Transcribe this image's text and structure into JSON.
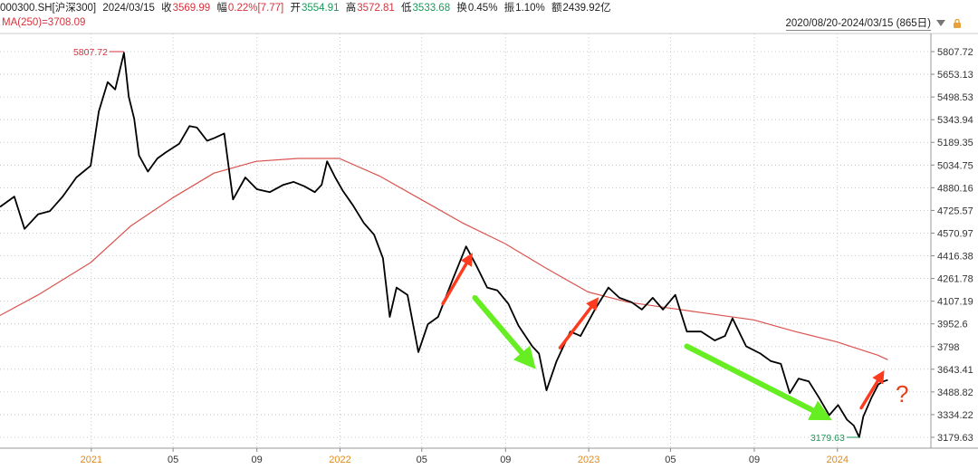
{
  "header": {
    "symbol": "000300.SH[沪深300]",
    "date": "2024/03/15",
    "close_label": "收",
    "close": "3569.99",
    "change_label": "幅",
    "change": "0.22%[7.77]",
    "open_label": "开",
    "open": "3554.91",
    "high_label": "高",
    "high": "3572.81",
    "low_label": "低",
    "low": "3533.68",
    "turnover_label": "换",
    "turnover": "0.45%",
    "amplitude_label": "振",
    "amplitude": "1.10%",
    "amount_label": "额",
    "amount": "2439.92亿",
    "ma_label": "MA(250)=3708.09",
    "date_range": "2020/08/20-2024/03/15 (865日)",
    "dropdown_icon": "triangle-down-icon",
    "lock_icon": "lock-icon"
  },
  "chart_data": {
    "type": "line",
    "ylim": [
      3130,
      5900
    ],
    "y_ticks": [
      5807.72,
      5653.13,
      5498.53,
      5343.94,
      5189.35,
      5034.75,
      4880.16,
      4725.57,
      4570.97,
      4416.38,
      4261.78,
      4107.19,
      3952.6,
      3798,
      3643.41,
      3488.82,
      3334.22,
      3179.63
    ],
    "x_labels": [
      "2021",
      "05",
      "09",
      "2022",
      "05",
      "09",
      "2023",
      "05",
      "09",
      "2024"
    ],
    "x_label_dates": [
      "2021-01-01",
      "2021-05-01",
      "2021-09-01",
      "2022-01-01",
      "2022-05-01",
      "2022-09-01",
      "2023-01-01",
      "2023-05-01",
      "2023-09-01",
      "2024-01-01"
    ],
    "series": [
      {
        "name": "000300.SH",
        "color": "#000000",
        "points": [
          [
            "2020-08-20",
            4750
          ],
          [
            "2020-09-10",
            4820
          ],
          [
            "2020-09-25",
            4600
          ],
          [
            "2020-10-15",
            4700
          ],
          [
            "2020-11-01",
            4720
          ],
          [
            "2020-11-20",
            4820
          ],
          [
            "2020-12-10",
            4950
          ],
          [
            "2020-12-31",
            5030
          ],
          [
            "2021-01-12",
            5400
          ],
          [
            "2021-01-25",
            5600
          ],
          [
            "2021-02-05",
            5550
          ],
          [
            "2021-02-18",
            5800
          ],
          [
            "2021-02-25",
            5500
          ],
          [
            "2021-03-05",
            5350
          ],
          [
            "2021-03-12",
            5100
          ],
          [
            "2021-03-25",
            4990
          ],
          [
            "2021-04-08",
            5080
          ],
          [
            "2021-04-20",
            5120
          ],
          [
            "2021-05-10",
            5180
          ],
          [
            "2021-05-25",
            5300
          ],
          [
            "2021-06-05",
            5290
          ],
          [
            "2021-06-20",
            5200
          ],
          [
            "2021-07-01",
            5220
          ],
          [
            "2021-07-15",
            5250
          ],
          [
            "2021-07-28",
            4800
          ],
          [
            "2021-08-15",
            4950
          ],
          [
            "2021-09-01",
            4870
          ],
          [
            "2021-09-20",
            4850
          ],
          [
            "2021-10-10",
            4900
          ],
          [
            "2021-10-25",
            4920
          ],
          [
            "2021-11-10",
            4890
          ],
          [
            "2021-11-25",
            4850
          ],
          [
            "2021-12-05",
            4900
          ],
          [
            "2021-12-13",
            5060
          ],
          [
            "2021-12-25",
            4950
          ],
          [
            "2022-01-05",
            4860
          ],
          [
            "2022-01-20",
            4760
          ],
          [
            "2022-02-05",
            4640
          ],
          [
            "2022-02-20",
            4560
          ],
          [
            "2022-03-05",
            4400
          ],
          [
            "2022-03-15",
            4000
          ],
          [
            "2022-03-25",
            4200
          ],
          [
            "2022-04-10",
            4150
          ],
          [
            "2022-04-26",
            3760
          ],
          [
            "2022-05-10",
            3950
          ],
          [
            "2022-05-25",
            4000
          ],
          [
            "2022-06-15",
            4250
          ],
          [
            "2022-07-05",
            4480
          ],
          [
            "2022-07-20",
            4350
          ],
          [
            "2022-08-05",
            4200
          ],
          [
            "2022-08-20",
            4180
          ],
          [
            "2022-09-05",
            4090
          ],
          [
            "2022-09-20",
            3940
          ],
          [
            "2022-10-10",
            3800
          ],
          [
            "2022-10-20",
            3750
          ],
          [
            "2022-10-31",
            3500
          ],
          [
            "2022-11-15",
            3700
          ],
          [
            "2022-12-05",
            3900
          ],
          [
            "2022-12-20",
            3870
          ],
          [
            "2023-01-10",
            4050
          ],
          [
            "2023-01-30",
            4200
          ],
          [
            "2023-02-15",
            4130
          ],
          [
            "2023-03-05",
            4100
          ],
          [
            "2023-03-20",
            4050
          ],
          [
            "2023-04-05",
            4130
          ],
          [
            "2023-04-20",
            4050
          ],
          [
            "2023-05-08",
            4150
          ],
          [
            "2023-05-25",
            3900
          ],
          [
            "2023-06-15",
            3900
          ],
          [
            "2023-07-05",
            3840
          ],
          [
            "2023-07-20",
            3870
          ],
          [
            "2023-07-31",
            3990
          ],
          [
            "2023-08-20",
            3800
          ],
          [
            "2023-09-10",
            3750
          ],
          [
            "2023-09-25",
            3700
          ],
          [
            "2023-10-10",
            3680
          ],
          [
            "2023-10-23",
            3480
          ],
          [
            "2023-11-05",
            3580
          ],
          [
            "2023-11-20",
            3560
          ],
          [
            "2023-12-05",
            3450
          ],
          [
            "2023-12-20",
            3330
          ],
          [
            "2024-01-02",
            3400
          ],
          [
            "2024-01-15",
            3300
          ],
          [
            "2024-01-25",
            3260
          ],
          [
            "2024-02-02",
            3180
          ],
          [
            "2024-02-08",
            3320
          ],
          [
            "2024-02-20",
            3450
          ],
          [
            "2024-03-01",
            3540
          ],
          [
            "2024-03-08",
            3560
          ],
          [
            "2024-03-15",
            3570
          ]
        ]
      },
      {
        "name": "MA(250)",
        "color": "#d9534f",
        "points": [
          [
            "2020-08-20",
            4010
          ],
          [
            "2020-10-15",
            4150
          ],
          [
            "2020-12-31",
            4370
          ],
          [
            "2021-02-28",
            4620
          ],
          [
            "2021-04-30",
            4810
          ],
          [
            "2021-06-30",
            4980
          ],
          [
            "2021-08-31",
            5060
          ],
          [
            "2021-10-31",
            5080
          ],
          [
            "2021-12-31",
            5080
          ],
          [
            "2022-02-28",
            4960
          ],
          [
            "2022-04-30",
            4800
          ],
          [
            "2022-06-30",
            4640
          ],
          [
            "2022-08-31",
            4500
          ],
          [
            "2022-10-31",
            4330
          ],
          [
            "2022-12-31",
            4170
          ],
          [
            "2023-02-28",
            4100
          ],
          [
            "2023-04-30",
            4060
          ],
          [
            "2023-06-30",
            4020
          ],
          [
            "2023-08-31",
            3980
          ],
          [
            "2023-10-31",
            3900
          ],
          [
            "2023-12-31",
            3830
          ],
          [
            "2024-02-29",
            3740
          ],
          [
            "2024-03-15",
            3708.09
          ]
        ]
      }
    ],
    "annotations": {
      "max_label": "5807.72",
      "min_label": "3179.63",
      "question": "?"
    },
    "arrows": [
      {
        "color": "#ff3b1f",
        "from": [
          "2022-06-01",
          4090
        ],
        "to": [
          "2022-07-10",
          4400
        ]
      },
      {
        "color": "#66ee22",
        "from": [
          "2022-07-18",
          4130
        ],
        "to": [
          "2022-10-05",
          3700
        ]
      },
      {
        "color": "#ff3b1f",
        "from": [
          "2022-11-20",
          3790
        ],
        "to": [
          "2023-01-10",
          4100
        ]
      },
      {
        "color": "#66ee22",
        "from": [
          "2023-05-25",
          3800
        ],
        "to": [
          "2023-12-10",
          3330
        ]
      },
      {
        "color": "#ff3b1f",
        "from": [
          "2024-02-05",
          3380
        ],
        "to": [
          "2024-03-05",
          3600
        ]
      }
    ],
    "colors": {
      "price": "#000000",
      "ma": "#d9534f",
      "up": "#d6323c",
      "down": "#1a9a5a",
      "grid": "#bbbbbb"
    }
  }
}
